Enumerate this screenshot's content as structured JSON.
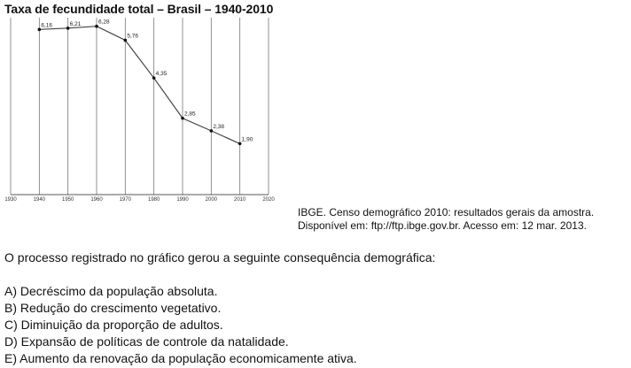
{
  "chart_data": {
    "type": "line",
    "title": "Taxa de fecundidade total – Brasil – 1940-2010",
    "x_ticks": [
      1930,
      1940,
      1950,
      1960,
      1970,
      1980,
      1990,
      2000,
      2010,
      2020
    ],
    "xlim": [
      1930,
      2020
    ],
    "ylim": [
      0,
      6.6
    ],
    "grid": "vertical",
    "series": [
      {
        "x": [
          1940,
          1950,
          1960,
          1970,
          1980,
          1990,
          2000,
          2010
        ],
        "values": [
          6.16,
          6.21,
          6.28,
          5.76,
          4.35,
          2.85,
          2.38,
          1.9
        ],
        "labels": [
          "6,16",
          "6,21",
          "6,28",
          "5,76",
          "4,35",
          "2,85",
          "2,38",
          "1,90"
        ]
      }
    ]
  },
  "source": {
    "line1": "IBGE. Censo demográfico 2010: resultados gerais da amostra.",
    "line2": "Disponível em: ftp://ftp.ibge.gov.br. Acesso em: 12 mar. 2013."
  },
  "question": "O processo registrado no gráfico gerou a seguinte consequência demográfica:",
  "options": [
    "A) Decréscimo da população absoluta.",
    "B) Redução do crescimento vegetativo.",
    "C) Diminuição da proporção de adultos.",
    "D) Expansão de políticas de controle da natalidade.",
    "E) Aumento da renovação da população economicamente ativa."
  ]
}
